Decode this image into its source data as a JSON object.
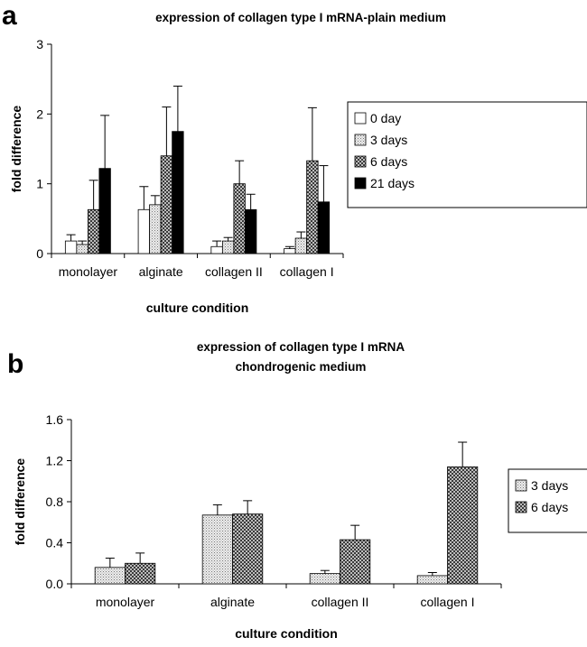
{
  "chart_data": [
    {
      "panel": "a",
      "type": "bar",
      "title": "expression of collagen type I mRNA-plain medium",
      "title_lines": [
        "expression of collagen type I mRNA-plain medium"
      ],
      "xlabel": "culture condition",
      "ylabel": "fold difference",
      "ylim": [
        0,
        3
      ],
      "yticks": [
        0,
        1,
        2,
        3
      ],
      "ytick_labels": [
        "0",
        "1",
        "2",
        "3"
      ],
      "categories": [
        "monolayer",
        "alginate",
        "collagen II",
        "collagen I"
      ],
      "legend_position": "right",
      "grid": false,
      "series": [
        {
          "name": "0 day",
          "pattern": "white",
          "values": [
            0.18,
            0.63,
            0.1,
            0.07
          ],
          "errors": [
            0.09,
            0.33,
            0.08,
            0.03
          ]
        },
        {
          "name": "3 days",
          "pattern": "light-dots",
          "values": [
            0.13,
            0.7,
            0.18,
            0.22
          ],
          "errors": [
            0.05,
            0.13,
            0.05,
            0.09
          ]
        },
        {
          "name": "6 days",
          "pattern": "checker",
          "values": [
            0.63,
            1.4,
            1.0,
            1.33
          ],
          "errors": [
            0.42,
            0.7,
            0.33,
            0.76
          ]
        },
        {
          "name": "21 days",
          "pattern": "black",
          "values": [
            1.22,
            1.75,
            0.63,
            0.74
          ],
          "errors": [
            0.76,
            0.65,
            0.22,
            0.52
          ]
        }
      ]
    },
    {
      "panel": "b",
      "type": "bar",
      "title": "expression of collagen type I mRNA chondrogenic medium",
      "title_lines": [
        "expression of collagen type I mRNA",
        "chondrogenic medium"
      ],
      "xlabel": "culture condition",
      "ylabel": "fold difference",
      "ylim": [
        0,
        1.6
      ],
      "yticks": [
        0,
        0.4,
        0.8,
        1.2,
        1.6
      ],
      "ytick_labels": [
        "0.0",
        "0.4",
        "0.8",
        "1.2",
        "1.6"
      ],
      "categories": [
        "monolayer",
        "alginate",
        "collagen II",
        "collagen I"
      ],
      "legend_position": "right",
      "grid": false,
      "series": [
        {
          "name": "3 days",
          "pattern": "light-dots",
          "values": [
            0.16,
            0.67,
            0.1,
            0.08
          ],
          "errors": [
            0.09,
            0.1,
            0.03,
            0.03
          ]
        },
        {
          "name": "6 days",
          "pattern": "checker",
          "values": [
            0.2,
            0.68,
            0.43,
            1.14
          ],
          "errors": [
            0.1,
            0.13,
            0.14,
            0.24
          ]
        }
      ]
    }
  ]
}
